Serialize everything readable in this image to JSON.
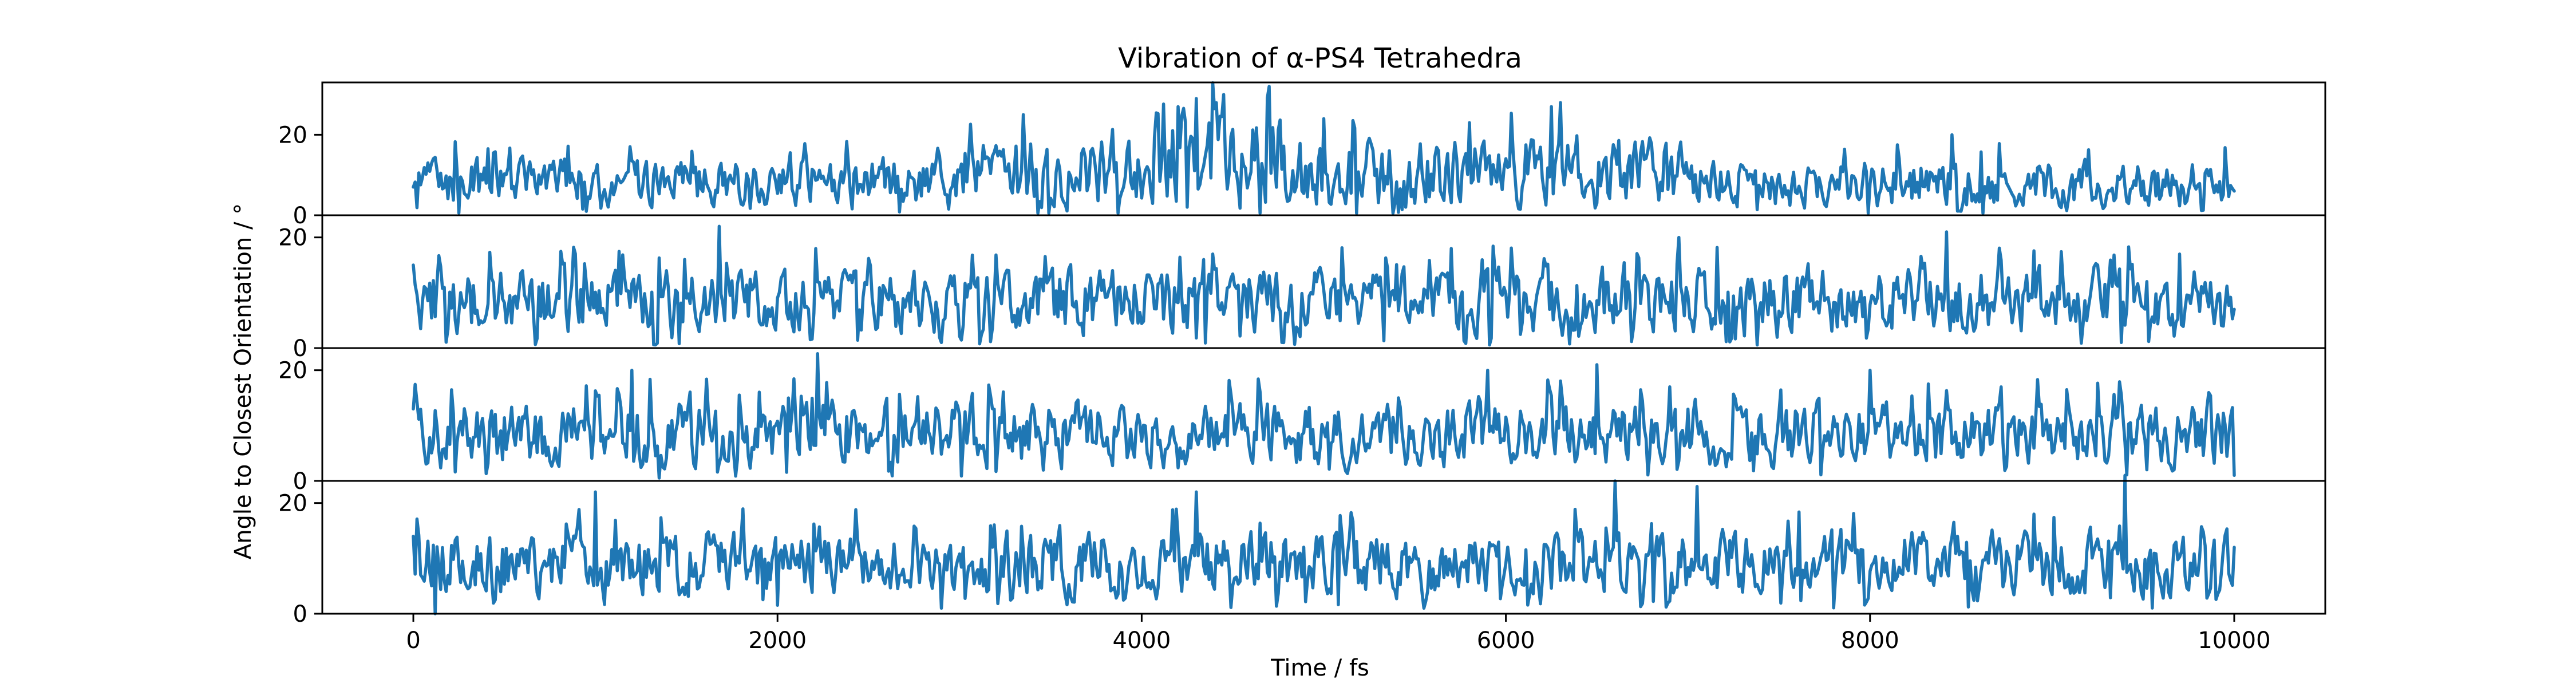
{
  "chart_data": {
    "type": "line",
    "title": "Vibration of α-PS4 Tetrahedra",
    "xlabel": "Time / fs",
    "ylabel": "Angle to Closest Orientation / °",
    "xlim": [
      -500,
      10500
    ],
    "xticks": [
      0,
      2000,
      4000,
      6000,
      8000,
      10000
    ],
    "xtick_labels": [
      "0",
      "2000",
      "4000",
      "6000",
      "8000",
      "10000"
    ],
    "ytick_labels": [
      "0",
      "20"
    ],
    "line_color": "#1f77b4",
    "grid": false,
    "legend": "none",
    "panels": [
      {
        "ylim": [
          0,
          33
        ],
        "yticks": [
          0,
          20
        ],
        "y_start": 7,
        "y_end": 6,
        "segments": [
          {
            "x0": 0,
            "x1": 3000,
            "mean": 8.5,
            "amp": 4
          },
          {
            "x0": 3000,
            "x1": 4000,
            "mean": 11,
            "amp": 6
          },
          {
            "x0": 4000,
            "x1": 4800,
            "mean": 14,
            "amp": 8
          },
          {
            "x0": 4800,
            "x1": 6000,
            "mean": 10,
            "amp": 6
          },
          {
            "x0": 6000,
            "x1": 7000,
            "mean": 11,
            "amp": 6
          },
          {
            "x0": 7000,
            "x1": 10000,
            "mean": 8,
            "amp": 4
          }
        ],
        "peaks": [
          {
            "x": 4700,
            "y": 32
          },
          {
            "x": 4450,
            "y": 30
          },
          {
            "x": 4300,
            "y": 29
          },
          {
            "x": 4200,
            "y": 27
          },
          {
            "x": 3350,
            "y": 25
          },
          {
            "x": 6300,
            "y": 28
          },
          {
            "x": 6250,
            "y": 27
          },
          {
            "x": 5800,
            "y": 23
          },
          {
            "x": 5000,
            "y": 24
          },
          {
            "x": 8450,
            "y": 20
          },
          {
            "x": 4250,
            "y": 2
          },
          {
            "x": 5450,
            "y": 2
          },
          {
            "x": 8500,
            "y": 1
          }
        ]
      },
      {
        "ylim": [
          0,
          24
        ],
        "yticks": [
          0,
          20
        ],
        "y_start": 15,
        "y_end": 7,
        "segments": [
          {
            "x0": 0,
            "x1": 10000,
            "mean": 8.5,
            "amp": 4
          }
        ],
        "peaks": [
          {
            "x": 1680,
            "y": 22
          },
          {
            "x": 8420,
            "y": 21
          },
          {
            "x": 6950,
            "y": 20
          },
          {
            "x": 5700,
            "y": 18
          },
          {
            "x": 9700,
            "y": 17
          },
          {
            "x": 2900,
            "y": 1
          }
        ]
      },
      {
        "ylim": [
          0,
          24
        ],
        "yticks": [
          0,
          20
        ],
        "y_start": 13,
        "y_end": 1,
        "segments": [
          {
            "x0": 0,
            "x1": 10000,
            "mean": 8.5,
            "amp": 4
          }
        ],
        "peaks": [
          {
            "x": 2220,
            "y": 23
          },
          {
            "x": 6500,
            "y": 21
          },
          {
            "x": 5900,
            "y": 20
          },
          {
            "x": 8000,
            "y": 20
          },
          {
            "x": 1200,
            "y": 20
          },
          {
            "x": 6900,
            "y": 17
          }
        ]
      },
      {
        "ylim": [
          0,
          24
        ],
        "yticks": [
          0,
          20
        ],
        "y_start": 14,
        "y_end": 12,
        "segments": [
          {
            "x0": 0,
            "x1": 10000,
            "mean": 9,
            "amp": 4
          }
        ],
        "peaks": [
          {
            "x": 9400,
            "y": 25
          },
          {
            "x": 6600,
            "y": 24
          },
          {
            "x": 7050,
            "y": 23
          },
          {
            "x": 1000,
            "y": 22
          },
          {
            "x": 4300,
            "y": 22
          },
          {
            "x": 8900,
            "y": 18
          },
          {
            "x": 120,
            "y": 0
          },
          {
            "x": 2900,
            "y": 1
          },
          {
            "x": 5550,
            "y": 1
          }
        ]
      }
    ]
  }
}
